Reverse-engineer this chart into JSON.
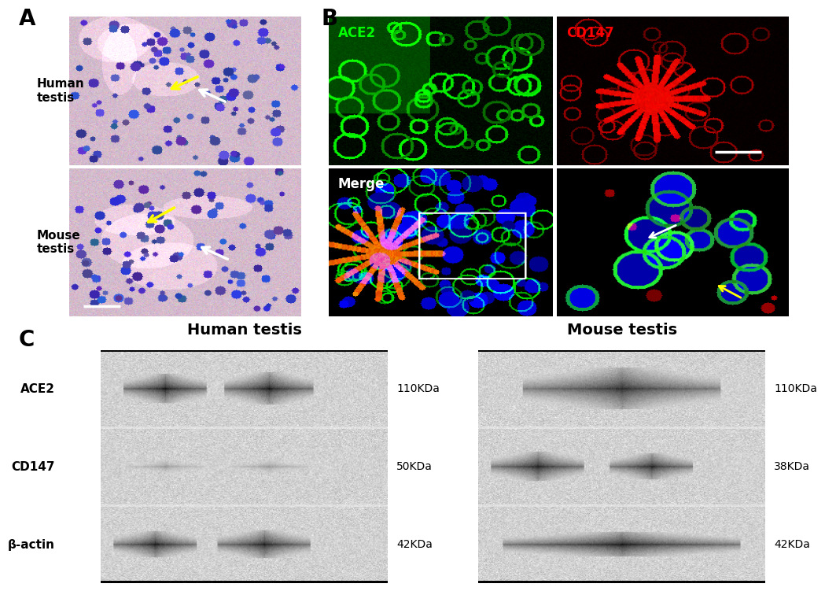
{
  "panel_A_label": "A",
  "panel_B_label": "B",
  "panel_C_label": "C",
  "human_testis_label": "Human\ntestis",
  "mouse_testis_label": "Mouse\ntestis",
  "ace2_label": "ACE2",
  "cd147_label": "CD147",
  "merge_label": "Merge",
  "blot_human_title": "Human testis",
  "blot_mouse_title": "Mouse testis",
  "blot_labels_left": [
    "ACE2",
    "CD147",
    "β-actin"
  ],
  "blot_labels_right_human": [
    "110KDa",
    "50KDa",
    "42KDa"
  ],
  "blot_labels_right_mouse": [
    "110KDa",
    "38KDa",
    "42KDa"
  ],
  "bg_color": "#ffffff",
  "label_fontsize": 20,
  "blot_title_fontsize": 14
}
